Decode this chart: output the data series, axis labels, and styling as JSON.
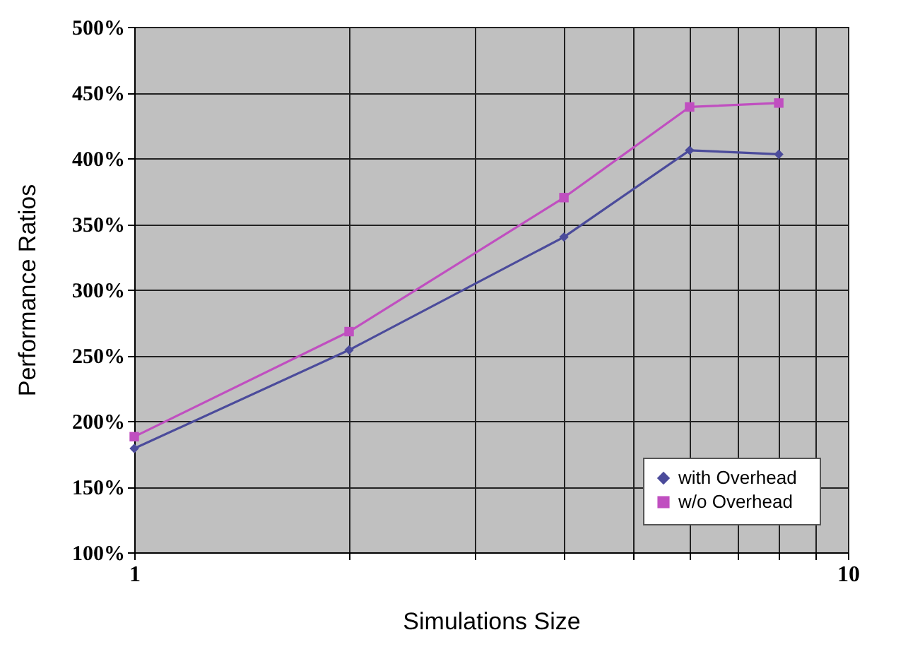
{
  "chart_data": {
    "type": "line",
    "xlabel": "Simulations Size",
    "ylabel": "Performance Ratios",
    "log": "x",
    "grid": true,
    "legend": "bottom right",
    "x": [
      1,
      2,
      4,
      6,
      8
    ],
    "xlim": [
      1,
      10
    ],
    "xticks": [
      1,
      {
        "value": 2,
        "label": null
      },
      {
        "value": 3,
        "label": null
      },
      {
        "value": 4,
        "label": null
      },
      {
        "value": 5,
        "label": null
      },
      {
        "value": 6,
        "label": null
      },
      {
        "value": 7,
        "label": null
      },
      {
        "value": 8,
        "label": null
      },
      {
        "value": 9,
        "label": null
      },
      10
    ],
    "ylim": [
      100,
      500
    ],
    "yticks": [
      {
        "value": 100,
        "label": "100%"
      },
      {
        "value": 150,
        "label": "150%"
      },
      {
        "value": 200,
        "label": "200%"
      },
      {
        "value": 250,
        "label": "250%"
      },
      {
        "value": 300,
        "label": "300%"
      },
      {
        "value": 350,
        "label": "350%"
      },
      {
        "value": 400,
        "label": "400%"
      },
      {
        "value": 450,
        "label": "450%"
      },
      {
        "value": 500,
        "label": "500%"
      }
    ],
    "series": [
      {
        "name": "with Overhead",
        "color": "#4b4b9b",
        "marker": "diamond",
        "values": [
          179,
          254,
          340,
          406,
          403
        ]
      },
      {
        "name": "w/o    Overhead",
        "color": "#c04fc0",
        "marker": "square",
        "values": [
          188,
          268,
          370,
          439,
          442
        ]
      }
    ]
  }
}
